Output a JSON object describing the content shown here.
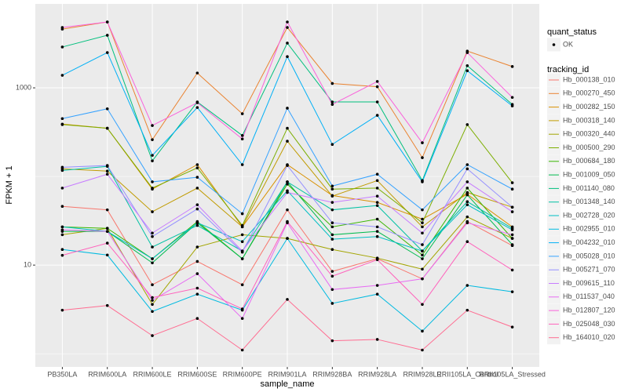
{
  "chart_data": {
    "type": "line",
    "x_label": "sample_name",
    "y_label": "FPKM + 1",
    "categories": [
      "PB350LA",
      "RRIM600LA",
      "RRIM600LE",
      "RRIM600SE",
      "RRIM600PE",
      "RRIM901LA",
      "RRIM928BA",
      "RRIM928LA",
      "RRIM928LE",
      "RRII105LA_Control",
      "RRII105LA_Stressed"
    ],
    "ylim": [
      0.71,
      8850
    ],
    "yticks": [
      10,
      1000
    ],
    "log_scale": true,
    "grid": true,
    "status_legend": {
      "title": "quant_status",
      "labels": [
        "OK"
      ]
    },
    "legend_title": "tracking_id",
    "series": [
      {
        "name": "Hb_000138_010",
        "color": "#F8766D",
        "values": [
          46,
          42,
          6,
          11,
          6,
          42,
          8.5,
          11.8,
          7,
          31,
          16.6
        ]
      },
      {
        "name": "Hb_000270_450",
        "color": "#EA8331",
        "values": [
          4600,
          5540,
          260,
          1470,
          510,
          4800,
          1120,
          1030,
          163,
          2600,
          1740
        ]
      },
      {
        "name": "Hb_000282_150",
        "color": "#D89000",
        "values": [
          390,
          350,
          72,
          136,
          27,
          136,
          61,
          51,
          33,
          63,
          27
        ]
      },
      {
        "name": "Hb_000318_140",
        "color": "#C09B00",
        "values": [
          122,
          115,
          40,
          74,
          27,
          250,
          60,
          90,
          27,
          66,
          45
        ]
      },
      {
        "name": "Hb_000320_440",
        "color": "#A3A500",
        "values": [
          22,
          26,
          3.6,
          16,
          22,
          20,
          15,
          12,
          9,
          35,
          20
        ]
      },
      {
        "name": "Hb_000500_290",
        "color": "#7CAE00",
        "values": [
          385,
          350,
          74,
          125,
          28,
          350,
          72,
          74,
          30,
          385,
          85
        ]
      },
      {
        "name": "Hb_000684_180",
        "color": "#39B600",
        "values": [
          27,
          26,
          11.8,
          31,
          11.8,
          82,
          27,
          33,
          13,
          74,
          20
        ]
      },
      {
        "name": "Hb_001009_050",
        "color": "#00BB4E",
        "values": [
          24,
          24,
          10.6,
          30,
          11.8,
          87,
          22,
          24,
          11.8,
          62,
          17
        ]
      },
      {
        "name": "Hb_001140_080",
        "color": "#00BF7D",
        "values": [
          2890,
          3920,
          150,
          693,
          290,
          3200,
          693,
          693,
          90,
          1780,
          650
        ]
      },
      {
        "name": "Hb_001348_140",
        "color": "#00C1A3",
        "values": [
          117,
          130,
          16,
          28,
          14.4,
          87,
          42,
          47,
          14.4,
          52,
          26
        ]
      },
      {
        "name": "Hb_002728_020",
        "color": "#00BFC4",
        "values": [
          27,
          24,
          11.8,
          30,
          18.4,
          69,
          19.6,
          21,
          14.4,
          48,
          25
        ]
      },
      {
        "name": "Hb_002955_010",
        "color": "#00BAE0",
        "values": [
          15,
          13,
          3,
          4.7,
          3.1,
          20,
          3.7,
          4.7,
          1.8,
          5.9,
          5
        ]
      },
      {
        "name": "Hb_004232_010",
        "color": "#00B0F6",
        "values": [
          1385,
          2500,
          173,
          600,
          136,
          2250,
          230,
          490,
          87,
          1560,
          625
        ]
      },
      {
        "name": "Hb_005028_010",
        "color": "#35A2FF",
        "values": [
          450,
          580,
          87,
          98,
          38,
          590,
          78,
          106,
          42,
          136,
          72
        ]
      },
      {
        "name": "Hb_005271_070",
        "color": "#9590FF",
        "values": [
          127,
          133,
          21,
          43,
          14,
          133,
          30,
          27,
          17,
          122,
          45
        ]
      },
      {
        "name": "Hb_009615_110",
        "color": "#C77CFF",
        "values": [
          74,
          106,
          23,
          48,
          14.4,
          66,
          51,
          60,
          23,
          87,
          40
        ]
      },
      {
        "name": "Hb_011537_040",
        "color": "#E76BF3",
        "values": [
          25,
          24,
          4,
          8,
          2.5,
          30,
          5.3,
          5.9,
          7,
          30,
          22
        ]
      },
      {
        "name": "Hb_012807_120",
        "color": "#FA62DB",
        "values": [
          4800,
          5540,
          376,
          680,
          265,
          5540,
          650,
          1180,
          240,
          2500,
          780
        ]
      },
      {
        "name": "Hb_025048_030",
        "color": "#FF62BC",
        "values": [
          12.9,
          17.7,
          4.3,
          5.5,
          3.2,
          31,
          7.5,
          11.5,
          3.6,
          18.4,
          8.8
        ]
      },
      {
        "name": "Hb_164010_020",
        "color": "#FF6C91",
        "values": [
          3.1,
          3.5,
          1.6,
          2.5,
          1.1,
          4.1,
          1.4,
          1.45,
          1.1,
          3.1,
          2
        ]
      }
    ]
  }
}
